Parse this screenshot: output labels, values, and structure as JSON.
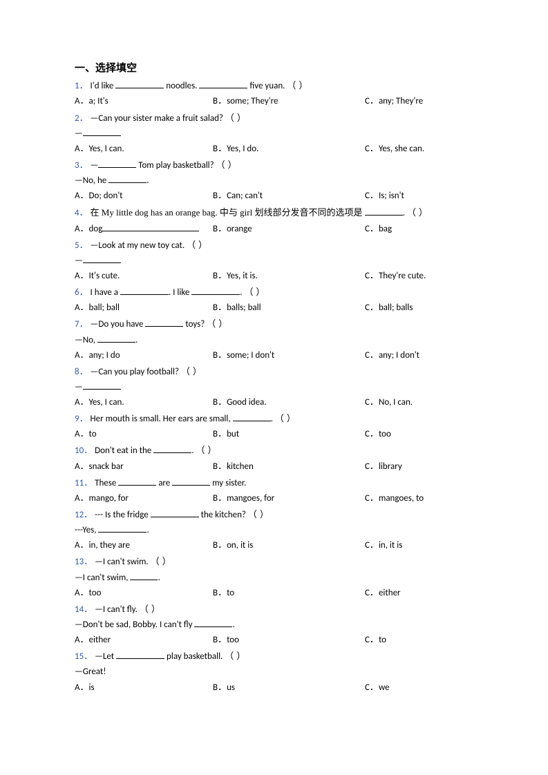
{
  "section_title": "一、选择填空",
  "num_color": "#2e5aac",
  "text_color": "#000000",
  "questions": [
    {
      "num": "1．",
      "stem_before": "I'd like ",
      "stem_mid": " noodles. ",
      "stem_after": " five yuan.",
      "opts": [
        "a; It's",
        "some; They're",
        "any; They're"
      ]
    },
    {
      "num": "2．",
      "stem": "—Can your sister make a fruit salad?",
      "cont": "—",
      "opts": [
        "Yes, I can.",
        "Yes, I do.",
        "Yes, she can."
      ]
    },
    {
      "num": "3．",
      "stem_before": "—",
      "stem_after": " Tom play basketball?",
      "cont_before": "—No, he ",
      "cont_after": ".",
      "opts": [
        "Do; don't",
        "Can; can't",
        "Is; isn't"
      ]
    },
    {
      "num": "4．",
      "stem_cn_before": "在 My little dog has an orange bag. 中与 girl 划线部分发音不同的选项是 ",
      "stem_cn_after": ".",
      "optA_before": "dog",
      "optB": "orange",
      "optC": "bag"
    },
    {
      "num": "5．",
      "stem": "—Look at my new toy cat.",
      "cont": "—",
      "opts": [
        "It's cute.",
        "Yes, it is.",
        "They're cute."
      ]
    },
    {
      "num": "6．",
      "stem_before": "I have a ",
      "stem_mid": ". I like ",
      "stem_after": ".",
      "opts": [
        "ball; ball",
        "balls; ball",
        "ball; balls"
      ]
    },
    {
      "num": "7．",
      "stem_before": "—Do you have ",
      "stem_after": " toys?",
      "cont_before": "—No, ",
      "cont_after": ".",
      "opts": [
        "any; I do",
        "some; I don't",
        "any; I don't"
      ]
    },
    {
      "num": "8．",
      "stem": "—Can you play football?",
      "cont": "—",
      "opts": [
        "Yes, I can.",
        "Good idea.",
        "No, I can."
      ]
    },
    {
      "num": "9．",
      "stem_before": "Her mouth is small. Her ears are small, ",
      "stem_after": ".",
      "opts": [
        "to",
        "but",
        "too"
      ]
    },
    {
      "num": "10．",
      "stem_before": "Don't eat in the ",
      "stem_after": ".",
      "opts": [
        "snack bar",
        "kitchen",
        "library"
      ]
    },
    {
      "num": "11．",
      "stem_before": "These ",
      "stem_mid": " are ",
      "stem_after": " my sister.",
      "opts": [
        "mango, for",
        "mangoes, for",
        "mangoes, to"
      ]
    },
    {
      "num": "12．",
      "stem_before": "--- Is the fridge ",
      "stem_after": " the kitchen?",
      "cont_before": "---Yes, ",
      "cont_after": ".",
      "opts": [
        "in, they are",
        "on, it is",
        "in, it is"
      ]
    },
    {
      "num": "13．",
      "stem": "—I can't swim.",
      "cont_before": "—I can't swim, ",
      "cont_after": ".",
      "opts": [
        "too",
        "to",
        "either"
      ]
    },
    {
      "num": "14．",
      "stem": "—I can't fly.",
      "cont_before": "—Don't be sad, Bobby. I can't fly ",
      "cont_after": ".",
      "opts": [
        "either",
        "too",
        "to"
      ]
    },
    {
      "num": "15．",
      "stem_before": "—Let ",
      "stem_after": " play basketball.",
      "cont": "—Great!",
      "opts": [
        "is",
        "us",
        "we"
      ]
    }
  ],
  "opt_labels": {
    "A": "A．",
    "B": "B．",
    "C": "C．"
  },
  "paren": "（ ）"
}
